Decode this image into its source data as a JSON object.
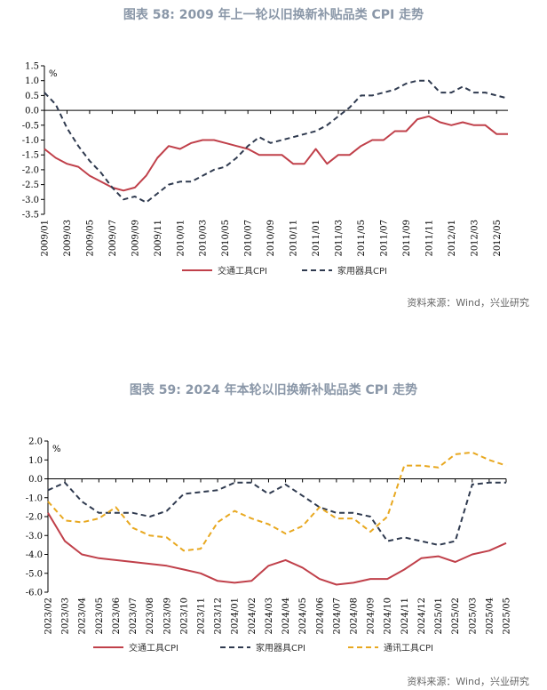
{
  "chart_data": [
    {
      "type": "line",
      "title": "图表 58: 2009 年上一轮以旧换新补贴品类 CPI 走势",
      "ylabel": "%",
      "ylim": [
        -3.5,
        1.5
      ],
      "yticks": [
        "1.5",
        "1.0",
        "0.5",
        "0.0",
        "-0.5",
        "-1.0",
        "-1.5",
        "-2.0",
        "-2.5",
        "-3.0",
        "-3.5"
      ],
      "categories": [
        "2009/01",
        "2009/02",
        "2009/03",
        "2009/04",
        "2009/05",
        "2009/06",
        "2009/07",
        "2009/08",
        "2009/09",
        "2009/10",
        "2009/11",
        "2009/12",
        "2010/01",
        "2010/02",
        "2010/03",
        "2010/04",
        "2010/05",
        "2010/06",
        "2010/07",
        "2010/08",
        "2010/09",
        "2010/10",
        "2010/11",
        "2010/12",
        "2011/01",
        "2011/02",
        "2011/03",
        "2011/04",
        "2011/05",
        "2011/06",
        "2011/07",
        "2011/08",
        "2011/09",
        "2011/10",
        "2011/11",
        "2011/12",
        "2012/01",
        "2012/02",
        "2012/03",
        "2012/04",
        "2012/05",
        "2012/06"
      ],
      "xtick_labels": [
        "2009/01",
        "2009/03",
        "2009/05",
        "2009/07",
        "2009/09",
        "2009/11",
        "2010/01",
        "2010/03",
        "2010/05",
        "2010/07",
        "2010/09",
        "2010/11",
        "2011/01",
        "2011/03",
        "2011/05",
        "2011/07",
        "2011/09",
        "2011/11",
        "2012/01",
        "2012/03",
        "2012/05"
      ],
      "series": [
        {
          "name": "交通工具CPI",
          "color": "#c0404a",
          "dash": "solid",
          "values": [
            -1.3,
            -1.6,
            -1.8,
            -1.9,
            -2.2,
            -2.4,
            -2.6,
            -2.7,
            -2.6,
            -2.2,
            -1.6,
            -1.2,
            -1.3,
            -1.1,
            -1.0,
            -1.0,
            -1.1,
            -1.2,
            -1.3,
            -1.5,
            -1.5,
            -1.5,
            -1.8,
            -1.8,
            -1.3,
            -1.8,
            -1.5,
            -1.5,
            -1.2,
            -1.0,
            -1.0,
            -0.7,
            -0.7,
            -0.3,
            -0.2,
            -0.4,
            -0.5,
            -0.4,
            -0.5,
            -0.5,
            -0.8,
            -0.8
          ]
        },
        {
          "name": "家用器具CPI",
          "color": "#2f3a4f",
          "dash": "dashed",
          "values": [
            0.6,
            0.2,
            -0.6,
            -1.2,
            -1.7,
            -2.1,
            -2.6,
            -3.0,
            -2.9,
            -3.1,
            -2.8,
            -2.5,
            -2.4,
            -2.4,
            -2.2,
            -2.0,
            -1.9,
            -1.6,
            -1.2,
            -0.9,
            -1.1,
            -1.0,
            -0.9,
            -0.8,
            -0.7,
            -0.5,
            -0.2,
            0.1,
            0.5,
            0.5,
            0.6,
            0.7,
            0.9,
            1.0,
            1.0,
            0.6,
            0.6,
            0.8,
            0.6,
            0.6,
            0.5,
            0.4
          ]
        }
      ],
      "source": "资料来源：Wind，兴业研究"
    },
    {
      "type": "line",
      "title": "图表 59: 2024 年本轮以旧换新补贴品类 CPI 走势",
      "ylabel": "%",
      "ylim": [
        -6.0,
        2.0
      ],
      "yticks": [
        "2.0",
        "1.0",
        "0.0",
        "-1.0",
        "-2.0",
        "-3.0",
        "-4.0",
        "-5.0",
        "-6.0"
      ],
      "categories": [
        "2023/02",
        "2023/03",
        "2023/04",
        "2023/05",
        "2023/06",
        "2023/07",
        "2023/08",
        "2023/09",
        "2023/10",
        "2023/11",
        "2023/12",
        "2024/01",
        "2024/02",
        "2024/03",
        "2024/04",
        "2024/05",
        "2024/06",
        "2024/07",
        "2024/08",
        "2024/09",
        "2024/10",
        "2024/11",
        "2024/12",
        "2025/01",
        "2025/02",
        "2025/03",
        "2025/04",
        "2025/05"
      ],
      "xtick_labels": [
        "2023/02",
        "2023/03",
        "2023/04",
        "2023/05",
        "2023/06",
        "2023/07",
        "2023/08",
        "2023/09",
        "2023/10",
        "2023/11",
        "2023/12",
        "2024/01",
        "2024/02",
        "2024/03",
        "2024/04",
        "2024/05",
        "2024/06",
        "2024/07",
        "2024/08",
        "2024/09",
        "2024/10",
        "2024/11",
        "2024/12",
        "2025/01",
        "2025/02",
        "2025/03",
        "2025/04",
        "2025/05"
      ],
      "series": [
        {
          "name": "交通工具CPI",
          "color": "#c0404a",
          "dash": "solid",
          "values": [
            -1.8,
            -3.3,
            -4.0,
            -4.2,
            -4.3,
            -4.4,
            -4.5,
            -4.6,
            -4.8,
            -5.0,
            -5.4,
            -5.5,
            -5.4,
            -4.6,
            -4.3,
            -4.7,
            -5.3,
            -5.6,
            -5.5,
            -5.3,
            -5.3,
            -4.8,
            -4.2,
            -4.1,
            -4.4,
            -4.0,
            -3.8,
            -3.4
          ]
        },
        {
          "name": "家用器具CPI",
          "color": "#2f3a4f",
          "dash": "dashed",
          "values": [
            -0.6,
            -0.2,
            -1.2,
            -1.8,
            -1.8,
            -1.8,
            -2.0,
            -1.7,
            -0.8,
            -0.7,
            -0.6,
            -0.2,
            -0.2,
            -0.8,
            -0.3,
            -0.9,
            -1.5,
            -1.8,
            -1.8,
            -2.0,
            -3.3,
            -3.1,
            -3.3,
            -3.5,
            -3.3,
            -0.3,
            -0.2,
            -0.2
          ]
        },
        {
          "name": "通讯工具CPI",
          "color": "#e8a820",
          "dash": "dashed",
          "values": [
            -1.2,
            -2.2,
            -2.3,
            -2.1,
            -1.5,
            -2.6,
            -3.0,
            -3.1,
            -3.8,
            -3.7,
            -2.3,
            -1.7,
            -2.1,
            -2.4,
            -2.9,
            -2.5,
            -1.5,
            -2.1,
            -2.1,
            -2.8,
            -2.0,
            0.7,
            0.7,
            0.6,
            1.3,
            1.4,
            1.0,
            0.7
          ]
        }
      ],
      "source": "资料来源：Wind，兴业研究"
    }
  ]
}
